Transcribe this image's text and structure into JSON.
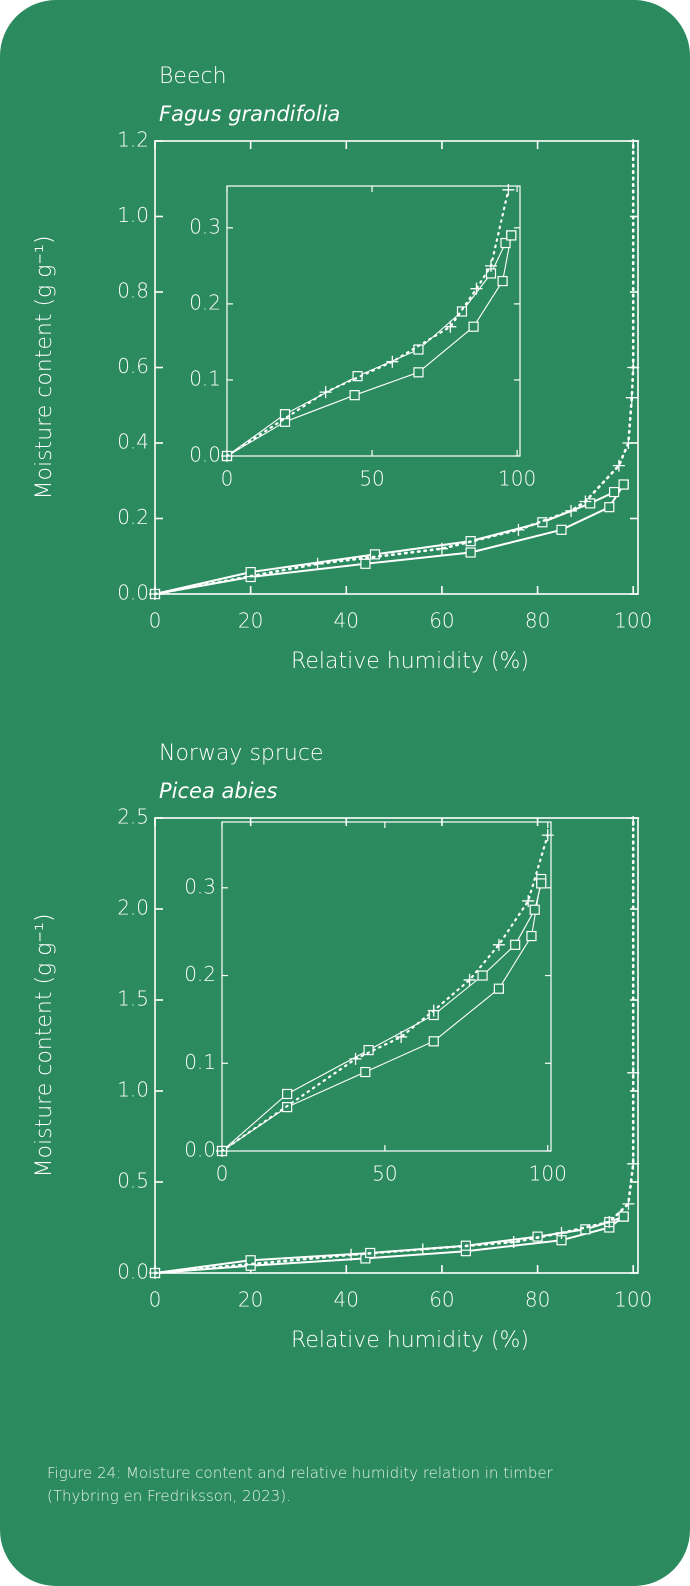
{
  "caption": [
    "Figure 24: Moisture content and relative humidity relation in timber",
    "(Thybring en Fredriksson, 2023)."
  ],
  "chart_data": [
    {
      "type": "line",
      "title": "Beech",
      "subtitle": "Fagus grandifolia",
      "xlabel": "Relative humidity (%)",
      "ylabel": "Moisture content (g g⁻¹)",
      "xlim": [
        0,
        101
      ],
      "ylim": [
        0,
        1.2
      ],
      "xticks": [
        0,
        20,
        40,
        60,
        80,
        100
      ],
      "yticks": [
        {
          "value": 0,
          "label": "0.0"
        },
        0.2,
        0.4,
        0.6,
        0.8,
        {
          "value": 1,
          "label": "1.0"
        },
        1.2
      ],
      "series": [
        {
          "color": "#ffffff",
          "style": "solid",
          "marker": "square",
          "x": [
            0,
            20,
            44,
            66,
            85,
            95,
            98
          ],
          "values": [
            0,
            0.045,
            0.08,
            0.11,
            0.17,
            0.23,
            0.29
          ]
        },
        {
          "color": "#ffffff",
          "style": "solid",
          "marker": "square",
          "x": [
            0,
            20,
            46,
            66,
            81,
            91,
            96,
            98
          ],
          "values": [
            0,
            0.058,
            0.105,
            0.14,
            0.19,
            0.24,
            0.27,
            0.29
          ]
        },
        {
          "color": "#ffffff",
          "style": "dotted",
          "marker": "plus",
          "x": [
            0,
            34,
            60,
            76,
            87,
            90,
            97,
            99,
            99.7,
            100,
            100
          ],
          "values": [
            0,
            0.08,
            0.12,
            0.17,
            0.22,
            0.245,
            0.34,
            0.4,
            0.52,
            0.6,
            1.2
          ]
        }
      ]
    },
    {
      "type": "line",
      "xlim": [
        0,
        101
      ],
      "ylim": [
        0,
        0.355
      ],
      "xticks": [
        0,
        50,
        100
      ],
      "yticks": [
        {
          "value": 0,
          "label": "0.0"
        },
        0.1,
        0.2,
        0.3
      ],
      "series": [
        {
          "color": "#ffffff",
          "style": "solid",
          "marker": "square",
          "x": [
            0,
            20,
            44,
            66,
            85,
            95,
            98
          ],
          "values": [
            0,
            0.045,
            0.08,
            0.11,
            0.17,
            0.23,
            0.29
          ]
        },
        {
          "color": "#ffffff",
          "style": "solid",
          "marker": "square",
          "x": [
            0,
            20,
            45,
            66,
            81,
            91,
            96,
            98
          ],
          "values": [
            0,
            0.055,
            0.105,
            0.14,
            0.19,
            0.24,
            0.28,
            0.29
          ]
        },
        {
          "color": "#ffffff",
          "style": "dotted",
          "marker": "plus",
          "x": [
            0,
            34,
            57,
            77,
            86,
            91,
            97
          ],
          "values": [
            0,
            0.084,
            0.124,
            0.17,
            0.22,
            0.25,
            0.35
          ]
        }
      ]
    },
    {
      "type": "line",
      "title": "Norway spruce",
      "subtitle": "Picea abies",
      "xlabel": "Relative humidity (%)",
      "ylabel": "Moisture content (g g⁻¹)",
      "xlim": [
        0,
        101
      ],
      "ylim": [
        0,
        2.5
      ],
      "xticks": [
        0,
        20,
        40,
        60,
        80,
        100
      ],
      "yticks": [
        {
          "value": 0,
          "label": "0.0"
        },
        0.5,
        {
          "value": 1,
          "label": "1.0"
        },
        1.5,
        {
          "value": 2,
          "label": "2.0"
        },
        2.5
      ],
      "series": [
        {
          "color": "#ffffff",
          "style": "solid",
          "marker": "square",
          "x": [
            0,
            20,
            44,
            65,
            85,
            95,
            98
          ],
          "values": [
            0,
            0.04,
            0.08,
            0.12,
            0.18,
            0.25,
            0.31
          ]
        },
        {
          "color": "#ffffff",
          "style": "solid",
          "marker": "square",
          "x": [
            0,
            20,
            45,
            65,
            80,
            90,
            95,
            98
          ],
          "values": [
            0,
            0.07,
            0.11,
            0.15,
            0.2,
            0.24,
            0.28,
            0.31
          ]
        },
        {
          "color": "#ffffff",
          "style": "dotted",
          "marker": "plus",
          "x": [
            0,
            41,
            56,
            75,
            85,
            95,
            99,
            100,
            100,
            100
          ],
          "values": [
            0,
            0.1,
            0.13,
            0.17,
            0.22,
            0.28,
            0.38,
            0.6,
            1.1,
            2.5
          ]
        }
      ]
    },
    {
      "type": "line",
      "xlim": [
        0,
        101
      ],
      "ylim": [
        0,
        0.375
      ],
      "xticks": [
        0,
        50,
        100
      ],
      "yticks": [
        {
          "value": 0,
          "label": "0.0"
        },
        0.1,
        0.2,
        0.3
      ],
      "series": [
        {
          "color": "#ffffff",
          "style": "solid",
          "marker": "square",
          "x": [
            0,
            20,
            44,
            65,
            85,
            95,
            98
          ],
          "values": [
            0,
            0.05,
            0.09,
            0.125,
            0.185,
            0.245,
            0.31
          ]
        },
        {
          "color": "#ffffff",
          "style": "solid",
          "marker": "square",
          "x": [
            0,
            20,
            45,
            65,
            80,
            90,
            96,
            98
          ],
          "values": [
            0,
            0.065,
            0.115,
            0.155,
            0.2,
            0.235,
            0.275,
            0.305
          ]
        },
        {
          "color": "#ffffff",
          "style": "dotted",
          "marker": "plus",
          "x": [
            0,
            41,
            55,
            65,
            76,
            85,
            94,
            100
          ],
          "values": [
            0,
            0.105,
            0.13,
            0.16,
            0.195,
            0.235,
            0.285,
            0.36
          ]
        }
      ]
    }
  ]
}
